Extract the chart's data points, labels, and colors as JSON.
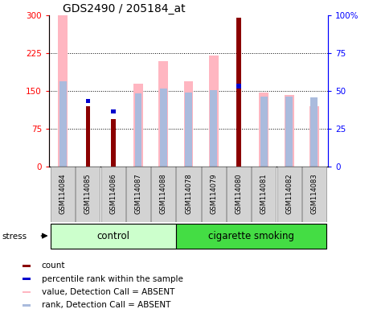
{
  "title": "GDS2490 / 205184_at",
  "samples": [
    "GSM114084",
    "GSM114085",
    "GSM114086",
    "GSM114087",
    "GSM114088",
    "GSM114078",
    "GSM114079",
    "GSM114080",
    "GSM114081",
    "GSM114082",
    "GSM114083"
  ],
  "count_values": [
    0,
    120,
    95,
    0,
    0,
    0,
    0,
    295,
    0,
    0,
    0
  ],
  "percentile_values": [
    0,
    130,
    110,
    0,
    0,
    0,
    0,
    160,
    0,
    0,
    0
  ],
  "absent_value": [
    300,
    0,
    0,
    165,
    210,
    170,
    220,
    0,
    148,
    143,
    120
  ],
  "absent_rank": [
    170,
    0,
    0,
    145,
    155,
    148,
    152,
    0,
    140,
    140,
    137
  ],
  "ylim_left": [
    0,
    300
  ],
  "ylim_right": [
    0,
    100
  ],
  "yticks_left": [
    0,
    75,
    150,
    225,
    300
  ],
  "yticks_right": [
    0,
    25,
    50,
    75,
    100
  ],
  "ytick_labels_left": [
    "0",
    "75",
    "150",
    "225",
    "300"
  ],
  "ytick_labels_right": [
    "0",
    "25",
    "50",
    "75",
    "100%"
  ],
  "color_count": "#8B0000",
  "color_percentile": "#0000CD",
  "color_absent_value": "#FFB6C1",
  "color_absent_rank": "#AABBDD",
  "control_label": "control",
  "smoking_label": "cigarette smoking",
  "stress_label": "stress",
  "legend_items": [
    "count",
    "percentile rank within the sample",
    "value, Detection Call = ABSENT",
    "rank, Detection Call = ABSENT"
  ],
  "bg_color": "#ffffff",
  "control_bg": "#CCFFCC",
  "smoking_bg": "#44DD44"
}
